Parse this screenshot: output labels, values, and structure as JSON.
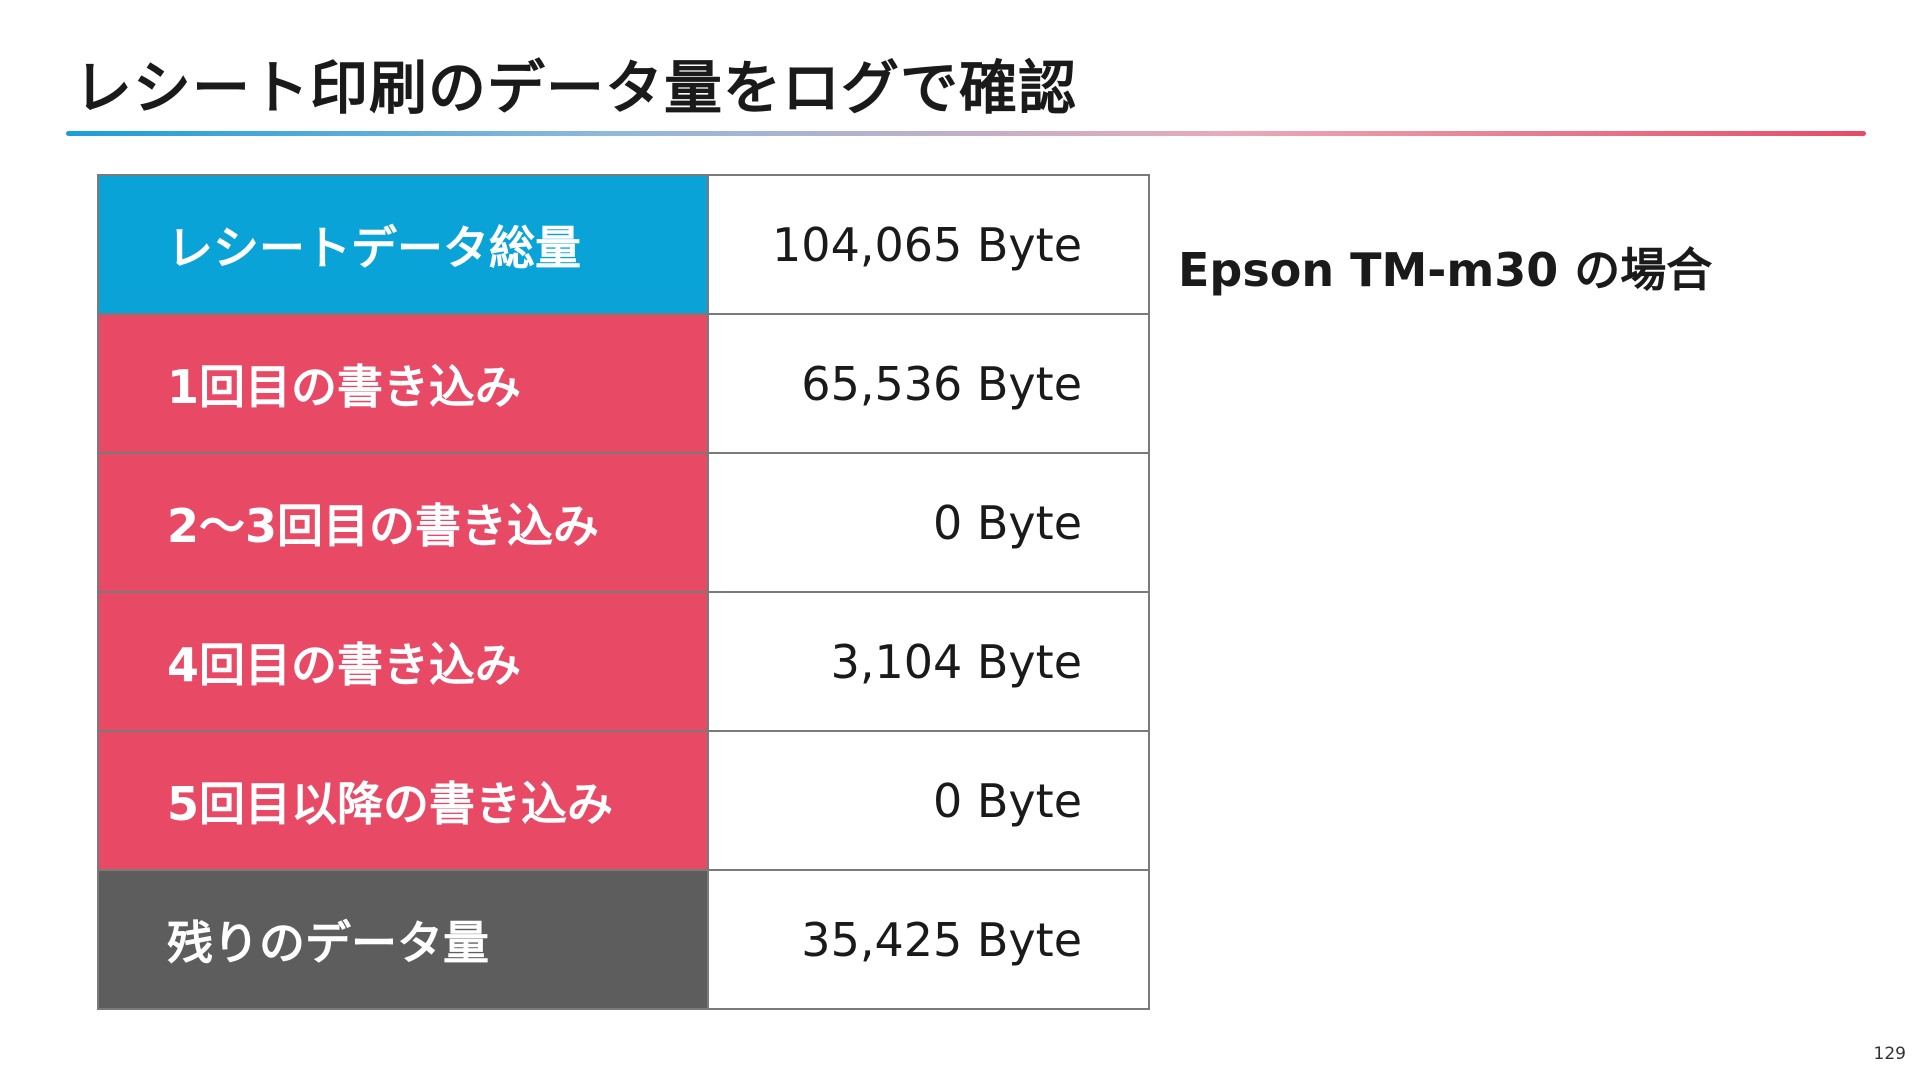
{
  "slide": {
    "title": "レシート印刷のデータ量をログで確認",
    "note": "Epson TM-m30 の場合",
    "page_number": "129"
  },
  "table": {
    "rows": [
      {
        "label": "レシートデータ総量",
        "value": "104,065 Byte",
        "kind": "total"
      },
      {
        "label": "1回目の書き込み",
        "value": "65,536 Byte",
        "kind": "write"
      },
      {
        "label": "2〜3回目の書き込み",
        "value": "0 Byte",
        "kind": "write"
      },
      {
        "label": "4回目の書き込み",
        "value": "3,104 Byte",
        "kind": "write"
      },
      {
        "label": "5回目以降の書き込み",
        "value": "0 Byte",
        "kind": "write"
      },
      {
        "label": "残りのデータ量",
        "value": "35,425 Byte",
        "kind": "remain"
      }
    ]
  },
  "colors": {
    "total": "#0aa3d8",
    "write": "#e84a66",
    "remain": "#5d5d5d"
  }
}
